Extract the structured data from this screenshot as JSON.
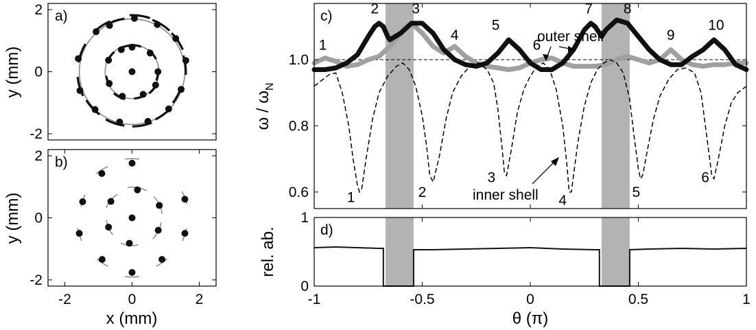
{
  "chart_data": [
    {
      "id": "a",
      "type": "scatter",
      "panel_label": "a)",
      "ylabel": "y (mm)",
      "xlabel": "",
      "xlim": [
        -2.5,
        2.5
      ],
      "ylim": [
        -2.2,
        2.2
      ],
      "yticks": [
        "-2",
        "0",
        "2"
      ],
      "circles": [
        {
          "name": "",
          "radius": 1.57,
          "color": "#888888"
        },
        {
          "name": "",
          "radius": 0.8,
          "color": "#888888"
        }
      ],
      "points": [
        {
          "x": 0.0,
          "y": 0.0
        },
        {
          "x": 0.0,
          "y": 0.79
        },
        {
          "x": 0.54,
          "y": 0.6
        },
        {
          "x": 0.77,
          "y": 0.0
        },
        {
          "x": 0.7,
          "y": -0.43
        },
        {
          "x": 0.33,
          "y": -0.73
        },
        {
          "x": -0.29,
          "y": -0.79
        },
        {
          "x": -0.68,
          "y": -0.38
        },
        {
          "x": -0.7,
          "y": 0.37
        },
        {
          "x": -0.32,
          "y": 0.71
        },
        {
          "x": 0.07,
          "y": 1.72
        },
        {
          "x": 0.75,
          "y": 1.52
        },
        {
          "x": 1.3,
          "y": 1.07
        },
        {
          "x": 1.6,
          "y": 0.36
        },
        {
          "x": 1.46,
          "y": -0.57
        },
        {
          "x": 1.09,
          "y": -1.2
        },
        {
          "x": 0.47,
          "y": -1.6
        },
        {
          "x": -0.37,
          "y": -1.62
        },
        {
          "x": -1.1,
          "y": -1.22
        },
        {
          "x": -1.55,
          "y": -0.61
        },
        {
          "x": -1.6,
          "y": 0.42
        },
        {
          "x": -1.07,
          "y": 1.29
        },
        {
          "x": -0.67,
          "y": 1.49
        }
      ]
    },
    {
      "id": "b",
      "type": "scatter",
      "panel_label": "b)",
      "ylabel": "y (mm)",
      "xlabel": "x (mm)",
      "xlim": [
        -2.5,
        2.5
      ],
      "ylim": [
        -2.2,
        2.2
      ],
      "xticks": [
        "-2",
        "0",
        "2"
      ],
      "yticks": [
        "-2",
        "0",
        "2"
      ],
      "points": [
        {
          "x": 0.0,
          "y": 0.0
        },
        {
          "x": 0.16,
          "y": 0.9
        },
        {
          "x": 0.81,
          "y": 0.4
        },
        {
          "x": 0.78,
          "y": -0.4
        },
        {
          "x": -0.08,
          "y": -0.82
        },
        {
          "x": -0.7,
          "y": -0.3
        },
        {
          "x": -0.63,
          "y": 0.53
        },
        {
          "x": 0.0,
          "y": 1.76
        },
        {
          "x": 1.57,
          "y": 0.6
        },
        {
          "x": 1.57,
          "y": -0.5
        },
        {
          "x": 0.89,
          "y": -1.34
        },
        {
          "x": 0.0,
          "y": -1.76
        },
        {
          "x": -0.89,
          "y": -1.34
        },
        {
          "x": -1.57,
          "y": -0.5
        },
        {
          "x": -1.47,
          "y": 0.52
        },
        {
          "x": -0.9,
          "y": 1.43
        }
      ]
    },
    {
      "id": "c",
      "type": "line",
      "panel_label": "c)",
      "ylabel": "ω / ω",
      "ylabel_sub": "N",
      "xlabel": "",
      "xlim": [
        -1,
        1
      ],
      "ylim": [
        0.55,
        1.17
      ],
      "yticks": [
        "0.6",
        "0.8",
        "1.0"
      ],
      "reference_line": 1.0,
      "shaded_bands": [
        [
          -0.67,
          -0.54
        ],
        [
          0.33,
          0.46
        ]
      ],
      "series": [
        {
          "name": "",
          "style": "dark",
          "x": [
            -1.0,
            -0.95,
            -0.9,
            -0.85,
            -0.8,
            -0.75,
            -0.72,
            -0.7,
            -0.68,
            -0.66,
            -0.65,
            -0.6,
            -0.55,
            -0.5,
            -0.45,
            -0.4,
            -0.35,
            -0.3,
            -0.25,
            -0.2,
            -0.15,
            -0.1,
            -0.05,
            0.0,
            0.05,
            0.1,
            0.15,
            0.2,
            0.25,
            0.28,
            0.3,
            0.33,
            0.35,
            0.4,
            0.45,
            0.5,
            0.55,
            0.6,
            0.65,
            0.7,
            0.75,
            0.8,
            0.85,
            0.9,
            0.95,
            1.0
          ],
          "y": [
            0.97,
            0.97,
            0.975,
            0.99,
            1.015,
            1.07,
            1.1,
            1.11,
            1.1,
            1.07,
            1.06,
            1.08,
            1.11,
            1.11,
            1.08,
            1.03,
            1.0,
            0.985,
            0.98,
            0.99,
            1.02,
            1.06,
            1.03,
            0.99,
            0.97,
            0.97,
            0.99,
            1.03,
            1.09,
            1.11,
            1.1,
            1.07,
            1.09,
            1.12,
            1.11,
            1.07,
            1.03,
            1.0,
            0.985,
            0.985,
            1.01,
            1.03,
            1.06,
            1.03,
            0.985,
            0.97
          ]
        },
        {
          "name": "",
          "style": "gray",
          "x": [
            -1.0,
            -0.95,
            -0.9,
            -0.85,
            -0.8,
            -0.75,
            -0.7,
            -0.65,
            -0.6,
            -0.55,
            -0.5,
            -0.45,
            -0.4,
            -0.35,
            -0.3,
            -0.25,
            -0.2,
            -0.15,
            -0.1,
            -0.05,
            0.0,
            0.05,
            0.1,
            0.15,
            0.2,
            0.25,
            0.3,
            0.35,
            0.4,
            0.45,
            0.5,
            0.55,
            0.6,
            0.65,
            0.7,
            0.75,
            0.8,
            0.85,
            0.9,
            0.95,
            1.0
          ],
          "y": [
            0.99,
            1.005,
            0.995,
            0.98,
            0.985,
            1.0,
            1.01,
            1.04,
            1.08,
            1.11,
            1.08,
            1.04,
            1.02,
            1.04,
            1.01,
            0.99,
            0.98,
            0.975,
            0.97,
            0.975,
            0.99,
            1.0,
            1.005,
            0.99,
            0.98,
            0.98,
            0.98,
            0.985,
            1.0,
            1.01,
            1.0,
            0.99,
            1.0,
            1.03,
            1.0,
            0.985,
            0.98,
            0.985,
            0.985,
            0.99,
            0.99
          ]
        },
        {
          "name": "",
          "style": "dashed",
          "x": [
            -1.0,
            -0.96,
            -0.93,
            -0.9,
            -0.87,
            -0.84,
            -0.82,
            -0.8,
            -0.79,
            -0.78,
            -0.76,
            -0.73,
            -0.7,
            -0.66,
            -0.62,
            -0.59,
            -0.56,
            -0.53,
            -0.5,
            -0.48,
            -0.465,
            -0.45,
            -0.42,
            -0.39,
            -0.36,
            -0.32,
            -0.28,
            -0.24,
            -0.2,
            -0.17,
            -0.15,
            -0.13,
            -0.12,
            -0.11,
            -0.09,
            -0.06,
            -0.03,
            0.0,
            0.03,
            0.06,
            0.09,
            0.12,
            0.15,
            0.17,
            0.18,
            0.19,
            0.2,
            0.22,
            0.25,
            0.28,
            0.31,
            0.34,
            0.37,
            0.4,
            0.43,
            0.46,
            0.48,
            0.5,
            0.51,
            0.52,
            0.54,
            0.57,
            0.6,
            0.64,
            0.68,
            0.72,
            0.76,
            0.79,
            0.81,
            0.83,
            0.84,
            0.85,
            0.87,
            0.9,
            0.93,
            0.96,
            1.0
          ],
          "y": [
            0.92,
            0.94,
            0.955,
            0.96,
            0.9,
            0.8,
            0.7,
            0.62,
            0.6,
            0.61,
            0.7,
            0.82,
            0.9,
            0.95,
            0.98,
            0.99,
            0.97,
            0.92,
            0.83,
            0.74,
            0.65,
            0.63,
            0.71,
            0.82,
            0.9,
            0.95,
            0.98,
            0.99,
            0.97,
            0.93,
            0.85,
            0.73,
            0.66,
            0.65,
            0.72,
            0.84,
            0.91,
            0.95,
            0.98,
            0.99,
            0.97,
            0.91,
            0.8,
            0.68,
            0.6,
            0.6,
            0.65,
            0.75,
            0.86,
            0.93,
            0.97,
            0.99,
            1.0,
            0.99,
            0.96,
            0.88,
            0.77,
            0.67,
            0.64,
            0.65,
            0.72,
            0.82,
            0.89,
            0.94,
            0.97,
            0.975,
            0.96,
            0.9,
            0.8,
            0.7,
            0.65,
            0.64,
            0.7,
            0.8,
            0.87,
            0.9,
            0.92
          ]
        }
      ],
      "peak_labels": [
        {
          "text": "1",
          "x": -0.96,
          "y": 1.03
        },
        {
          "text": "2",
          "x": -0.72,
          "y": 1.14
        },
        {
          "text": "3",
          "x": -0.53,
          "y": 1.14
        },
        {
          "text": "4",
          "x": -0.35,
          "y": 1.06
        },
        {
          "text": "5",
          "x": -0.16,
          "y": 1.09
        },
        {
          "text": "6",
          "x": 0.03,
          "y": 1.03
        },
        {
          "text": "7",
          "x": 0.27,
          "y": 1.14
        },
        {
          "text": "8",
          "x": 0.45,
          "y": 1.14
        },
        {
          "text": "9",
          "x": 0.65,
          "y": 1.06
        },
        {
          "text": "10",
          "x": 0.86,
          "y": 1.09
        }
      ],
      "dip_labels": [
        {
          "text": "1",
          "x": -0.83,
          "y": 0.57
        },
        {
          "text": "2",
          "x": -0.5,
          "y": 0.585
        },
        {
          "text": "3",
          "x": -0.18,
          "y": 0.63
        },
        {
          "text": "4",
          "x": 0.15,
          "y": 0.56
        },
        {
          "text": "5",
          "x": 0.49,
          "y": 0.585
        },
        {
          "text": "6",
          "x": 0.81,
          "y": 0.63
        }
      ],
      "annotations": {
        "outer_shell": "outer shell",
        "inner_shell": "inner shell"
      }
    },
    {
      "id": "d",
      "type": "line",
      "panel_label": "d)",
      "ylabel": "rel. ab.",
      "xlabel": "θ (π)",
      "xlim": [
        -1,
        1
      ],
      "ylim": [
        0,
        1
      ],
      "xticks": [
        "-1",
        "-0.5",
        "0",
        "0.5",
        "1"
      ],
      "yticks": [
        "0",
        "1"
      ],
      "shaded_bands": [
        [
          -0.67,
          -0.54
        ],
        [
          0.33,
          0.46
        ]
      ],
      "series": [
        {
          "name": "",
          "x": [
            -1.0,
            -0.9,
            -0.8,
            -0.7,
            -0.68,
            -0.68,
            -0.54,
            -0.54,
            -0.45,
            -0.3,
            -0.15,
            0.0,
            0.15,
            0.3,
            0.32,
            0.32,
            0.46,
            0.46,
            0.55,
            0.7,
            0.85,
            1.0
          ],
          "y": [
            0.56,
            0.57,
            0.56,
            0.55,
            0.55,
            0.0,
            0.0,
            0.53,
            0.53,
            0.54,
            0.55,
            0.56,
            0.54,
            0.53,
            0.53,
            0.0,
            0.0,
            0.53,
            0.54,
            0.55,
            0.54,
            0.55
          ]
        }
      ]
    }
  ]
}
